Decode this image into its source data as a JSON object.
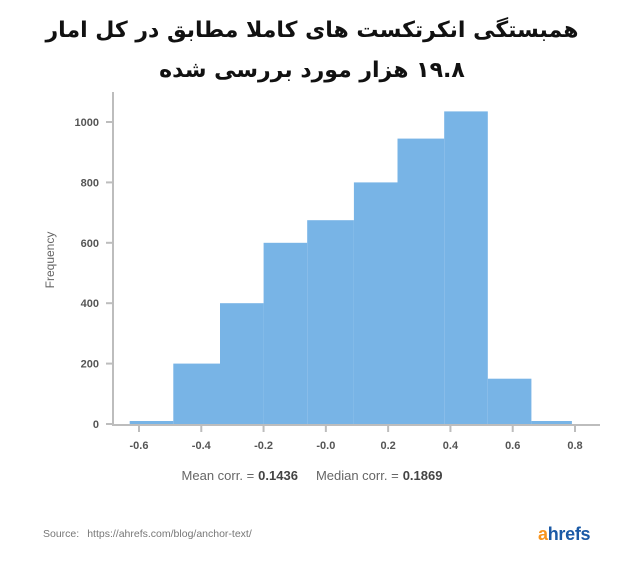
{
  "title": {
    "line1": "همبستگی انکرتکست های کاملا مطابق در کل امار",
    "line2": "۱۹.۸ هزار مورد بررسی شده"
  },
  "stats": {
    "mean_label": "Mean corr. =",
    "mean_value": "0.1436",
    "median_label": "Median corr. =",
    "median_value": "0.1869"
  },
  "footer": {
    "source_label": "Source:",
    "source_url": "https://ahrefs.com/blog/anchor-text/",
    "logo_a": "a",
    "logo_rest": "hrefs"
  },
  "colors": {
    "bar": "#78b4e6",
    "axis": "#bdbdbd",
    "logo_orange": "#f7941d",
    "logo_blue": "#1b5aa6"
  },
  "chart_data": {
    "type": "bar",
    "title": "همبستگی انکرتکست های کاملا مطابق در کل امار — ۱۹.۸ هزار مورد بررسی شده",
    "xlabel": "",
    "ylabel": "Frequency",
    "x_ticks": [
      "-0.6",
      "-0.4",
      "-0.2",
      "-0.0",
      "0.2",
      "0.4",
      "0.6",
      "0.8"
    ],
    "y_ticks": [
      "0",
      "200",
      "400",
      "600",
      "800",
      "1000"
    ],
    "ylim": [
      0,
      1100
    ],
    "xlim": [
      -0.68,
      0.85
    ],
    "grid": false,
    "legend": null,
    "bins": [
      {
        "start": -0.63,
        "end": -0.49,
        "value": 10
      },
      {
        "start": -0.49,
        "end": -0.34,
        "value": 200
      },
      {
        "start": -0.34,
        "end": -0.2,
        "value": 400
      },
      {
        "start": -0.2,
        "end": -0.06,
        "value": 600
      },
      {
        "start": -0.06,
        "end": 0.09,
        "value": 675
      },
      {
        "start": 0.09,
        "end": 0.23,
        "value": 800
      },
      {
        "start": 0.23,
        "end": 0.38,
        "value": 945
      },
      {
        "start": 0.38,
        "end": 0.52,
        "value": 1035
      },
      {
        "start": 0.52,
        "end": 0.66,
        "value": 150
      },
      {
        "start": 0.66,
        "end": 0.79,
        "value": 10
      }
    ],
    "categories": [
      "-0.63",
      "-0.49",
      "-0.34",
      "-0.20",
      "-0.06",
      "0.09",
      "0.23",
      "0.38",
      "0.52",
      "0.66"
    ],
    "values": [
      10,
      200,
      400,
      600,
      675,
      800,
      945,
      1035,
      150,
      10
    ],
    "annotations": [
      "Mean corr. = 0.1436",
      "Median corr. = 0.1869"
    ]
  }
}
